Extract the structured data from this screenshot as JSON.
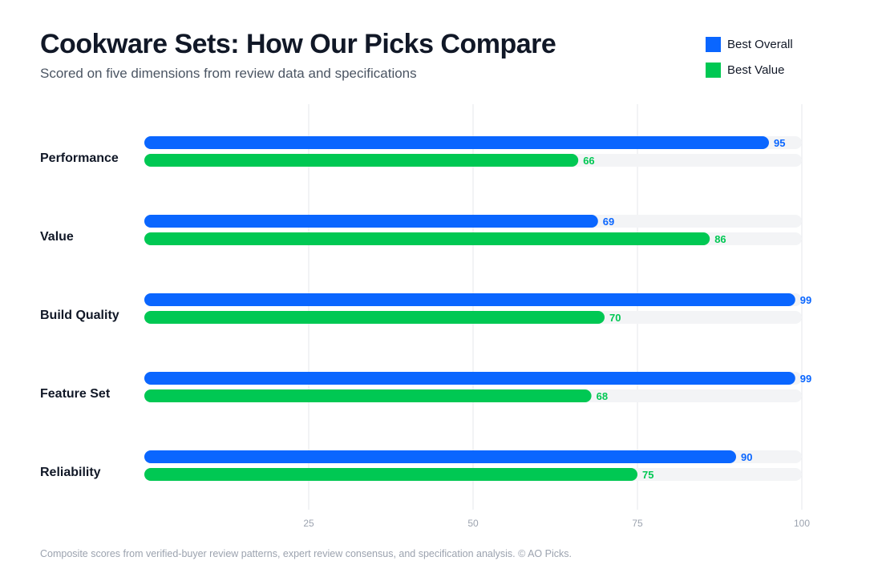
{
  "header": {
    "title": "Cookware Sets: How Our Picks Compare",
    "subtitle": "Scored on five dimensions from review data and specifications"
  },
  "legend": [
    {
      "label": "Best Overall",
      "color": "#0a66ff"
    },
    {
      "label": "Best Value",
      "color": "#00c853"
    }
  ],
  "footer": "Composite scores from verified-buyer review patterns, expert review consensus, and specification analysis. © AO Picks.",
  "chart_data": {
    "type": "bar",
    "orientation": "horizontal",
    "title": "Cookware Sets: How Our Picks Compare",
    "subtitle": "Scored on five dimensions from review data and specifications",
    "categories": [
      "Performance",
      "Value",
      "Build Quality",
      "Feature Set",
      "Reliability"
    ],
    "series": [
      {
        "name": "Best Overall",
        "color": "#0a66ff",
        "values": [
          95,
          69,
          99,
          99,
          90
        ]
      },
      {
        "name": "Best Value",
        "color": "#00c853",
        "values": [
          66,
          86,
          70,
          68,
          75
        ]
      }
    ],
    "xlim": [
      0,
      100
    ],
    "xticks": [
      25,
      50,
      75,
      100
    ],
    "grid": true,
    "legend_position": "top-right"
  }
}
